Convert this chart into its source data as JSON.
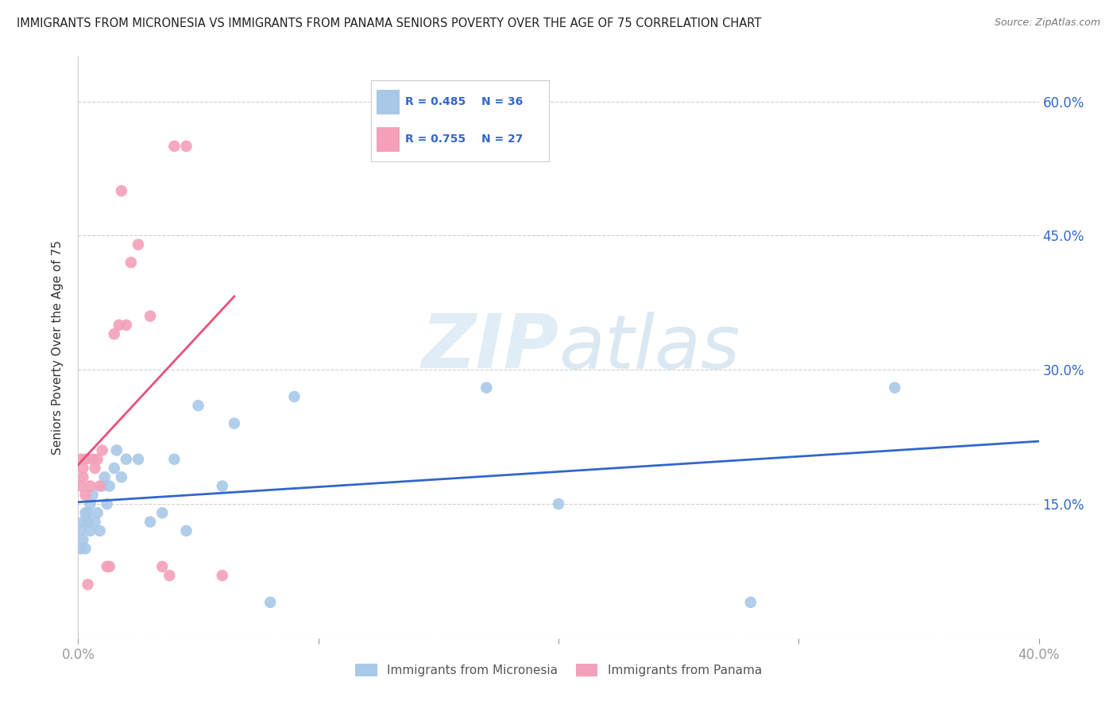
{
  "title": "IMMIGRANTS FROM MICRONESIA VS IMMIGRANTS FROM PANAMA SENIORS POVERTY OVER THE AGE OF 75 CORRELATION CHART",
  "source": "Source: ZipAtlas.com",
  "ylabel": "Seniors Poverty Over the Age of 75",
  "xlim": [
    0.0,
    0.4
  ],
  "ylim": [
    0.0,
    0.65
  ],
  "legend_micronesia_R": "0.485",
  "legend_micronesia_N": "36",
  "legend_panama_R": "0.755",
  "legend_panama_N": "27",
  "micronesia_color": "#a8c8e8",
  "panama_color": "#f4a0b8",
  "micronesia_line_color": "#3366cc",
  "panama_line_color": "#e8507a",
  "micronesia_x": [
    0.001,
    0.001,
    0.002,
    0.002,
    0.003,
    0.003,
    0.004,
    0.004,
    0.005,
    0.005,
    0.006,
    0.007,
    0.008,
    0.009,
    0.01,
    0.011,
    0.012,
    0.013,
    0.015,
    0.016,
    0.018,
    0.02,
    0.025,
    0.03,
    0.035,
    0.04,
    0.045,
    0.05,
    0.06,
    0.065,
    0.08,
    0.09,
    0.17,
    0.2,
    0.28,
    0.34
  ],
  "micronesia_y": [
    0.12,
    0.1,
    0.13,
    0.11,
    0.14,
    0.1,
    0.13,
    0.14,
    0.12,
    0.15,
    0.16,
    0.13,
    0.14,
    0.12,
    0.17,
    0.18,
    0.15,
    0.17,
    0.19,
    0.21,
    0.18,
    0.2,
    0.2,
    0.13,
    0.14,
    0.2,
    0.12,
    0.26,
    0.17,
    0.24,
    0.04,
    0.27,
    0.28,
    0.15,
    0.04,
    0.28
  ],
  "panama_x": [
    0.001,
    0.001,
    0.002,
    0.002,
    0.003,
    0.003,
    0.004,
    0.005,
    0.006,
    0.007,
    0.008,
    0.009,
    0.01,
    0.012,
    0.013,
    0.015,
    0.017,
    0.018,
    0.02,
    0.022,
    0.025,
    0.03,
    0.035,
    0.038,
    0.04,
    0.045,
    0.06
  ],
  "panama_y": [
    0.17,
    0.2,
    0.18,
    0.19,
    0.2,
    0.16,
    0.06,
    0.17,
    0.2,
    0.19,
    0.2,
    0.17,
    0.21,
    0.08,
    0.08,
    0.34,
    0.35,
    0.5,
    0.35,
    0.42,
    0.44,
    0.36,
    0.08,
    0.07,
    0.55,
    0.55,
    0.07
  ],
  "watermark_zip": "ZIP",
  "watermark_atlas": "atlas",
  "background_color": "#ffffff",
  "grid_color": "#d0d0d0",
  "xtick_positions": [
    0.0,
    0.1,
    0.2,
    0.3,
    0.4
  ],
  "ytick_positions": [
    0.0,
    0.15,
    0.3,
    0.45,
    0.6
  ],
  "ytick_labels_right": [
    "",
    "15.0%",
    "30.0%",
    "45.0%",
    "60.0%"
  ]
}
